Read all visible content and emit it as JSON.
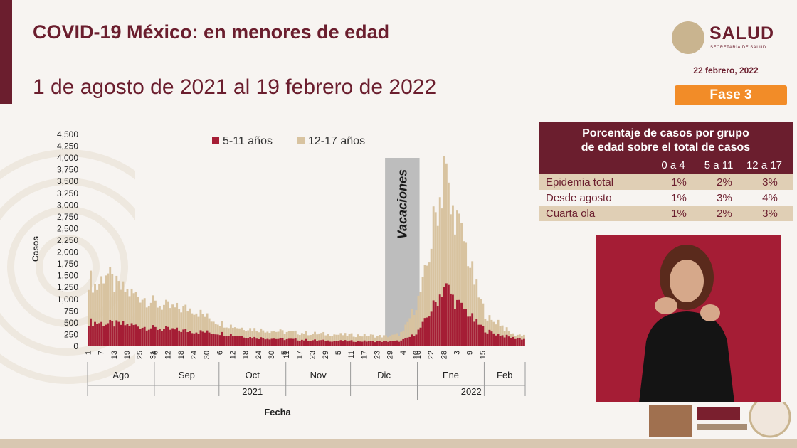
{
  "slide": {
    "title": "COVID-19 México: en menores de edad",
    "subtitle": "1 de agosto de 2021 al 19 febrero de 2022",
    "logo_text": "SALUD",
    "logo_subtext": "SECRETARÍA DE SALUD",
    "report_date": "22 febrero, 2022",
    "phase_label": "Fase 3"
  },
  "table": {
    "title_line1": "Porcentaje de casos por grupo",
    "title_line2": "de edad sobre el total de casos",
    "columns": [
      "0 a 4",
      "5 a 11",
      "12 a 17"
    ],
    "rows": [
      {
        "label": "Epidemia total",
        "values": [
          "1%",
          "2%",
          "3%"
        ]
      },
      {
        "label": "Desde agosto",
        "values": [
          "1%",
          "3%",
          "4%"
        ]
      },
      {
        "label": "Cuarta ola",
        "values": [
          "1%",
          "2%",
          "3%"
        ]
      }
    ]
  },
  "colors": {
    "primary": "#6b1e2e",
    "series_5_11": "#a51d35",
    "series_12_17": "#d8c3a0",
    "phase_badge": "#f28c28",
    "vacation_band": "#bdbdbd"
  },
  "chart_data": {
    "type": "area",
    "xlabel": "Fecha",
    "ylabel": "Casos",
    "ylim": [
      0,
      4500
    ],
    "ytick_step": 250,
    "legend": [
      "5-11 años",
      "12-17 años"
    ],
    "annotation": "Vacaciones",
    "annotation_range": [
      "2021-12-17",
      "2022-01-02"
    ],
    "day_ticks": [
      "1",
      "7",
      "13",
      "19",
      "25",
      "31",
      "6",
      "12",
      "18",
      "24",
      "30",
      "6",
      "12",
      "18",
      "24",
      "30",
      "5",
      "11",
      "17",
      "23",
      "29",
      "5",
      "11",
      "17",
      "23",
      "29",
      "4",
      "10",
      "16",
      "22",
      "28",
      "3",
      "9",
      "15"
    ],
    "months": [
      "Ago",
      "Sep",
      "Oct",
      "Nov",
      "Dic",
      "Ene",
      "Feb"
    ],
    "month_days": [
      31,
      30,
      31,
      30,
      31,
      31,
      19
    ],
    "years": [
      "2021",
      "2022"
    ],
    "series": [
      {
        "name": "5-11 años",
        "keyframes": [
          [
            0,
            520
          ],
          [
            10,
            480
          ],
          [
            20,
            450
          ],
          [
            31,
            380
          ],
          [
            45,
            330
          ],
          [
            61,
            280
          ],
          [
            75,
            190
          ],
          [
            92,
            150
          ],
          [
            110,
            120
          ],
          [
            125,
            110
          ],
          [
            138,
            105
          ],
          [
            145,
            115
          ],
          [
            150,
            220
          ],
          [
            153,
            330
          ],
          [
            156,
            520
          ],
          [
            159,
            780
          ],
          [
            162,
            1000
          ],
          [
            165,
            1280
          ],
          [
            167,
            1200
          ],
          [
            170,
            950
          ],
          [
            175,
            760
          ],
          [
            180,
            500
          ],
          [
            185,
            320
          ],
          [
            190,
            250
          ],
          [
            197,
            180
          ],
          [
            203,
            150
          ]
        ]
      },
      {
        "name": "12-17 años",
        "keyframes": [
          [
            0,
            1450
          ],
          [
            4,
            1250
          ],
          [
            8,
            1600
          ],
          [
            12,
            1300
          ],
          [
            18,
            1150
          ],
          [
            25,
            1050
          ],
          [
            31,
            900
          ],
          [
            40,
            800
          ],
          [
            48,
            800
          ],
          [
            55,
            620
          ],
          [
            61,
            500
          ],
          [
            70,
            400
          ],
          [
            80,
            350
          ],
          [
            92,
            300
          ],
          [
            100,
            280
          ],
          [
            110,
            260
          ],
          [
            120,
            240
          ],
          [
            130,
            230
          ],
          [
            138,
            210
          ],
          [
            142,
            230
          ],
          [
            146,
            300
          ],
          [
            150,
            700
          ],
          [
            153,
            1000
          ],
          [
            155,
            1300
          ],
          [
            157,
            1700
          ],
          [
            159,
            2200
          ],
          [
            160,
            2600
          ],
          [
            162,
            3000
          ],
          [
            164,
            3300
          ],
          [
            165,
            4100
          ],
          [
            166,
            3600
          ],
          [
            168,
            2800
          ],
          [
            170,
            2850
          ],
          [
            172,
            2500
          ],
          [
            175,
            2100
          ],
          [
            178,
            1550
          ],
          [
            181,
            1050
          ],
          [
            184,
            700
          ],
          [
            187,
            520
          ],
          [
            190,
            540
          ],
          [
            193,
            380
          ],
          [
            197,
            250
          ],
          [
            203,
            240
          ]
        ]
      }
    ]
  }
}
